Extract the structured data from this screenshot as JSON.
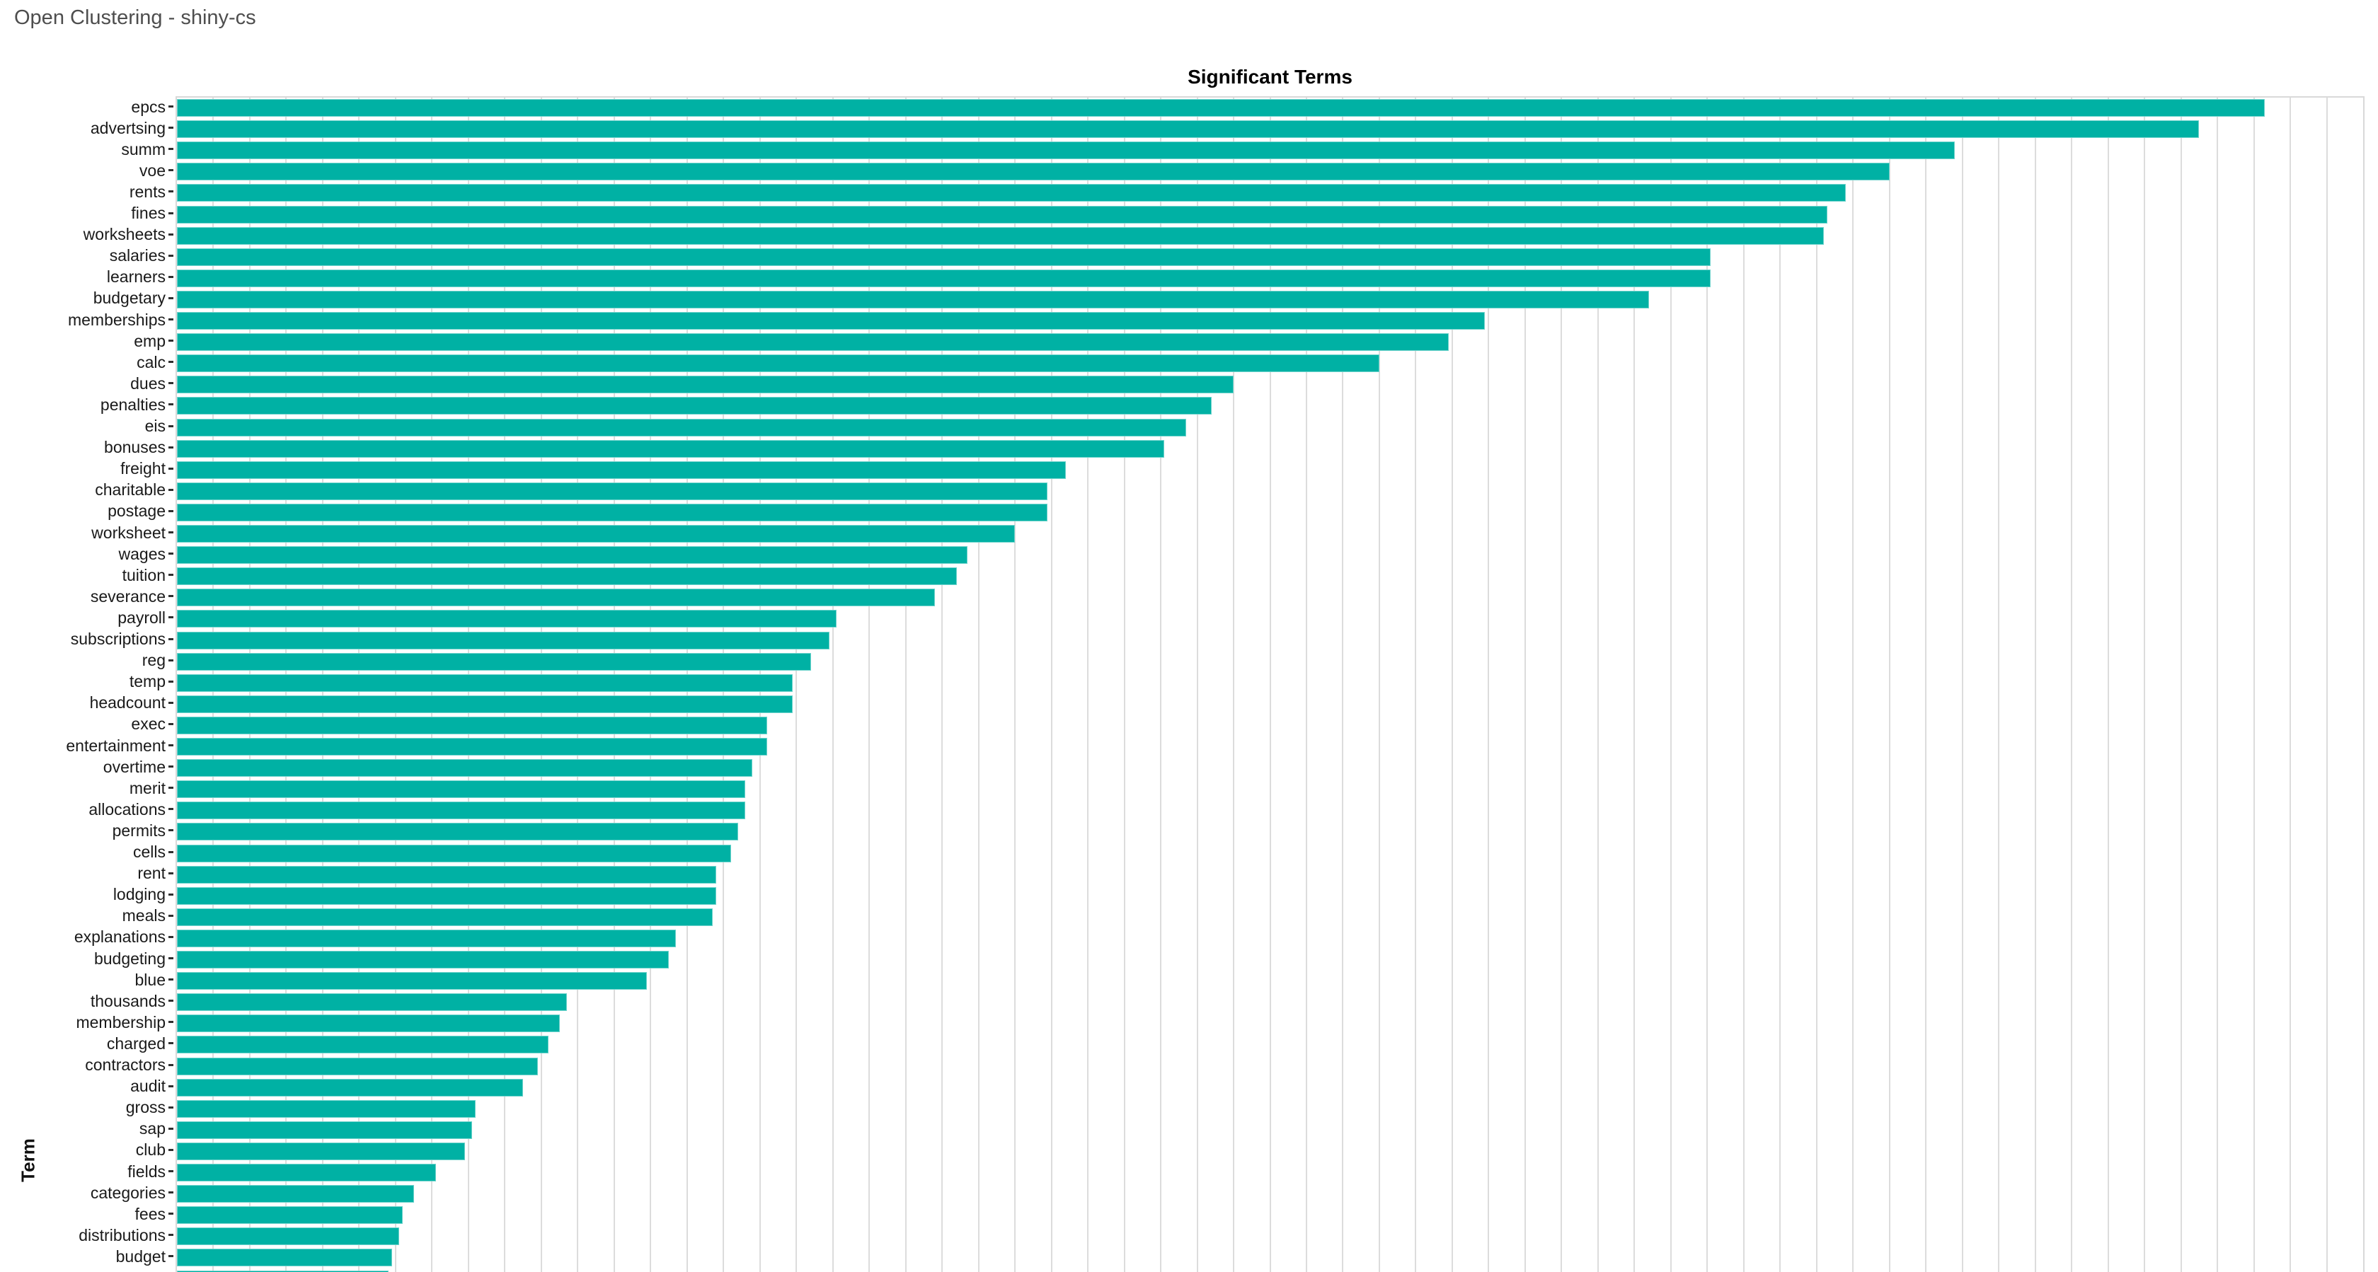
{
  "header": {
    "title": "Open Clustering - shiny-cs"
  },
  "chart": {
    "title": "Significant Terms",
    "y_axis_label": "Term",
    "bar_color": "#00b1a4",
    "gridline_color": "#dcdcdc",
    "axis_border_color": "#d9d9d9",
    "x_axis_tick_labels_visible": false
  },
  "chart_data": {
    "type": "bar",
    "orientation": "horizontal",
    "title": "Significant Terms",
    "xlabel": "",
    "ylabel": "Term",
    "xlim": [
      0,
      60
    ],
    "gridline_interval": 1,
    "grid": true,
    "legend": false,
    "note": "x-axis tick labels are below the visible viewport; values estimated in gridline units (1 unit = 1 gridline interval). Bars sorted descending; a 56th unlabeled bar is clipped at the bottom edge.",
    "categories": [
      "epcs",
      "advertsing",
      "summ",
      "voe",
      "rents",
      "fines",
      "worksheets",
      "salaries",
      "learners",
      "budgetary",
      "memberships",
      "emp",
      "calc",
      "dues",
      "penalties",
      "eis",
      "bonuses",
      "freight",
      "charitable",
      "postage",
      "worksheet",
      "wages",
      "tuition",
      "severance",
      "payroll",
      "subscriptions",
      "reg",
      "temp",
      "headcount",
      "exec",
      "entertainment",
      "overtime",
      "merit",
      "allocations",
      "permits",
      "cells",
      "rent",
      "lodging",
      "meals",
      "explanations",
      "budgeting",
      "blue",
      "thousands",
      "membership",
      "charged",
      "contractors",
      "audit",
      "gross",
      "sap",
      "club",
      "fields",
      "categories",
      "fees",
      "distributions",
      "budget"
    ],
    "values": [
      57.3,
      55.5,
      48.8,
      47.0,
      45.8,
      45.3,
      45.2,
      42.1,
      42.1,
      40.4,
      35.9,
      34.9,
      33.0,
      29.0,
      28.4,
      27.7,
      27.1,
      24.4,
      23.9,
      23.9,
      23.0,
      21.7,
      21.4,
      20.8,
      18.1,
      17.9,
      17.4,
      16.9,
      16.9,
      16.2,
      16.2,
      15.8,
      15.6,
      15.6,
      15.4,
      15.2,
      14.8,
      14.8,
      14.7,
      13.7,
      13.5,
      12.9,
      10.7,
      10.5,
      10.2,
      9.9,
      9.5,
      8.2,
      8.1,
      7.9,
      7.1,
      6.5,
      6.2,
      6.1,
      5.9
    ],
    "clipped_extra_bar_value": 5.8
  }
}
